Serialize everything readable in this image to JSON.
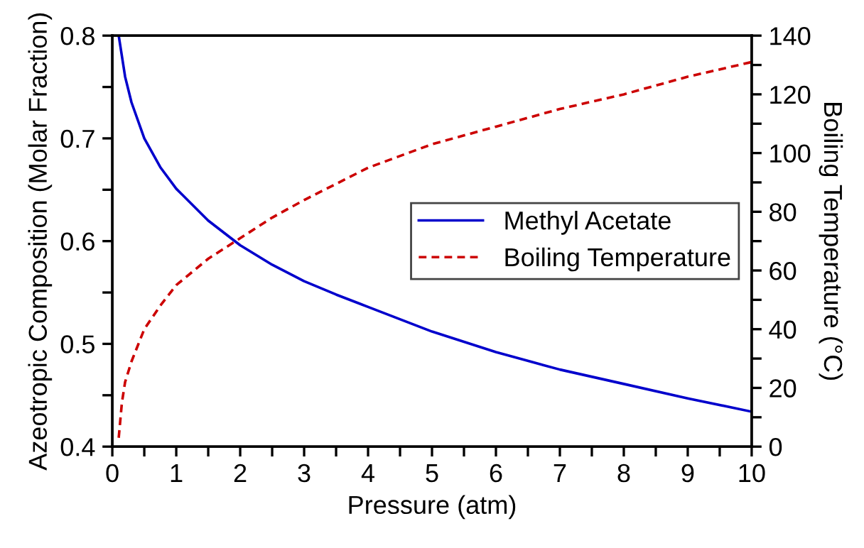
{
  "chart_data": {
    "type": "line",
    "xlabel": "Pressure (atm)",
    "ylabel": "Azeotropic Composition (Molar Fraction)",
    "y2label": "Boiling Temperature (°C)",
    "xlim": [
      0,
      10
    ],
    "xticks": [
      0,
      {
        "value": 0.5,
        "label": null
      },
      1,
      {
        "value": 1.5,
        "label": null
      },
      2,
      {
        "value": 2.5,
        "label": null
      },
      3,
      {
        "value": 3.5,
        "label": null
      },
      4,
      {
        "value": 4.5,
        "label": null
      },
      5,
      {
        "value": 5.5,
        "label": null
      },
      6,
      {
        "value": 6.5,
        "label": null
      },
      7,
      {
        "value": 7.5,
        "label": null
      },
      8,
      {
        "value": 8.5,
        "label": null
      },
      9,
      {
        "value": 9.5,
        "label": null
      },
      10
    ],
    "ylim": [
      0.4,
      0.8
    ],
    "yticks": [
      0.4,
      {
        "value": 0.45,
        "label": null
      },
      0.5,
      {
        "value": 0.55,
        "label": null
      },
      0.6,
      {
        "value": 0.65,
        "label": null
      },
      0.7,
      {
        "value": 0.75,
        "label": null
      },
      0.8
    ],
    "y2lim": [
      0,
      140
    ],
    "y2ticks": [
      0,
      {
        "value": 10,
        "label": null
      },
      20,
      {
        "value": 30,
        "label": null
      },
      40,
      {
        "value": 50,
        "label": null
      },
      60,
      {
        "value": 70,
        "label": null
      },
      80,
      {
        "value": 90,
        "label": null
      },
      100,
      {
        "value": 110,
        "label": null
      },
      120,
      {
        "value": 130,
        "label": null
      },
      140
    ],
    "legend": "right",
    "grid": false,
    "series": [
      {
        "name": "Methyl Acetate",
        "color": "#0000cc",
        "line_style": "solid",
        "x": [
          0.1,
          0.2,
          0.3,
          0.5,
          0.75,
          1,
          1.5,
          2,
          2.5,
          3,
          3.5,
          4,
          5,
          6,
          7,
          8,
          9,
          10
        ],
        "values": [
          0.8,
          0.76,
          0.735,
          0.7,
          0.672,
          0.651,
          0.62,
          0.596,
          0.577,
          0.561,
          0.548,
          0.536,
          0.512,
          0.492,
          0.475,
          0.461,
          0.447,
          0.434
        ]
      },
      {
        "name": "Boiling Temperature",
        "color": "#cc0000",
        "line_style": "dashed",
        "axis": "y2",
        "x": [
          0.1,
          0.15,
          0.2,
          0.3,
          0.5,
          0.75,
          1,
          1.5,
          2,
          2.5,
          3,
          4,
          5,
          6,
          7,
          8,
          9,
          10
        ],
        "values": [
          3,
          15,
          22,
          29,
          40,
          48,
          55,
          64,
          71,
          78,
          84,
          95,
          103,
          109,
          115,
          120,
          126,
          131
        ]
      }
    ]
  }
}
